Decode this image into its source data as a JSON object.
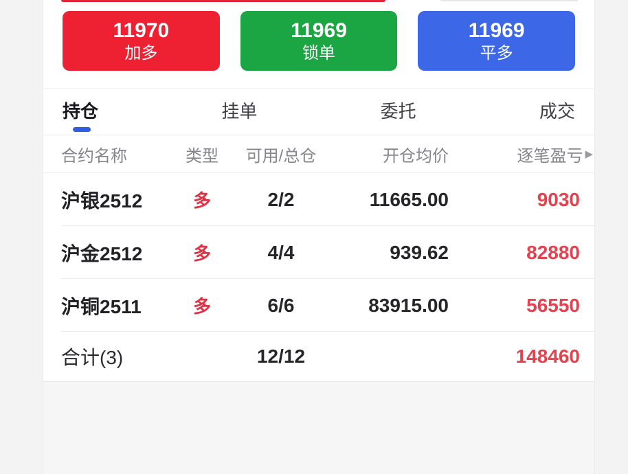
{
  "action_buttons": [
    {
      "value": "11970",
      "label": "加多",
      "color": "#ee2132"
    },
    {
      "value": "11969",
      "label": "锁单",
      "color": "#1ba643"
    },
    {
      "value": "11969",
      "label": "平多",
      "color": "#3c68e8"
    }
  ],
  "tabs": [
    {
      "label": "持仓",
      "active": true
    },
    {
      "label": "挂单",
      "active": false
    },
    {
      "label": "委托",
      "active": false
    },
    {
      "label": "成交",
      "active": false
    }
  ],
  "active_tab_indicator_color": "#2f5fe0",
  "table": {
    "headers": {
      "name": "合约名称",
      "type": "类型",
      "qty": "可用/总仓",
      "price": "开仓均价",
      "pnl": "逐笔盈亏",
      "pnl_caret_icon": "▶"
    },
    "rows": [
      {
        "name": "沪银2512",
        "type": "多",
        "qty": "2/2",
        "price": "11665.00",
        "pnl": "9030"
      },
      {
        "name": "沪金2512",
        "type": "多",
        "qty": "4/4",
        "price": "939.62",
        "pnl": "82880"
      },
      {
        "name": "沪铜2511",
        "type": "多",
        "qty": "6/6",
        "price": "83915.00",
        "pnl": "56550"
      }
    ],
    "total": {
      "name": "合计(3)",
      "qty": "12/12",
      "pnl": "148460"
    }
  },
  "colors": {
    "long_red": "#dd3345",
    "pnl_red": "#e8414e",
    "divider": "#ededef",
    "muted_text": "#85868c",
    "background": "#f3f3f4"
  }
}
